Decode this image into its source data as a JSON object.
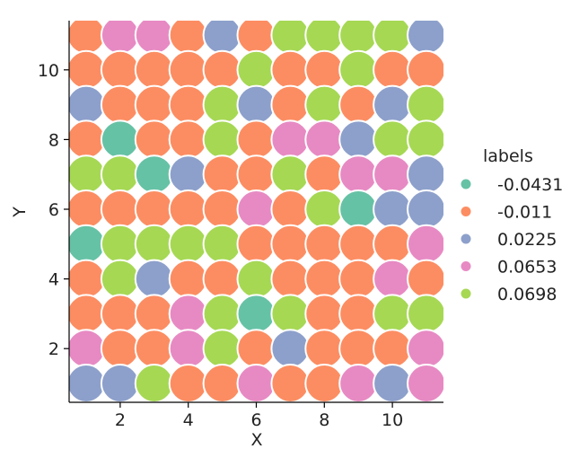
{
  "chart_data": {
    "type": "scatter",
    "xlabel": "X",
    "ylabel": "Y",
    "xlim": [
      0.5,
      11.5
    ],
    "ylim": [
      0.5,
      11.4
    ],
    "xticks": [
      2,
      4,
      6,
      8,
      10
    ],
    "yticks": [
      2,
      4,
      6,
      8,
      10
    ],
    "grid": false,
    "legend_title": "labels",
    "legend_position": "right",
    "series": [
      {
        "name": "-0.0431",
        "color": "#66c2a5"
      },
      {
        "name": "-0.011",
        "color": "#fc8d62"
      },
      {
        "name": "0.0225",
        "color": "#8da0cb"
      },
      {
        "name": "0.0653",
        "color": "#e78ac3"
      },
      {
        "name": "0.0698",
        "color": "#a6d854"
      }
    ],
    "grid_labels_rows_y11_to_y1": [
      [
        1,
        3,
        3,
        1,
        2,
        1,
        4,
        4,
        4,
        4,
        2
      ],
      [
        1,
        1,
        1,
        1,
        1,
        4,
        1,
        1,
        4,
        1,
        1
      ],
      [
        2,
        1,
        1,
        1,
        4,
        2,
        1,
        4,
        1,
        2,
        4
      ],
      [
        1,
        0,
        1,
        1,
        4,
        1,
        3,
        3,
        2,
        4,
        4
      ],
      [
        4,
        4,
        0,
        2,
        1,
        1,
        4,
        1,
        3,
        3,
        2
      ],
      [
        1,
        1,
        1,
        1,
        1,
        3,
        1,
        4,
        0,
        2,
        2
      ],
      [
        0,
        4,
        4,
        4,
        4,
        1,
        1,
        1,
        1,
        1,
        3
      ],
      [
        1,
        4,
        2,
        1,
        1,
        4,
        1,
        1,
        1,
        3,
        1
      ],
      [
        1,
        1,
        1,
        3,
        4,
        0,
        4,
        1,
        1,
        4,
        4
      ],
      [
        3,
        1,
        1,
        3,
        4,
        1,
        2,
        1,
        1,
        1,
        3
      ],
      [
        2,
        2,
        4,
        1,
        1,
        3,
        1,
        1,
        3,
        2,
        3
      ]
    ]
  }
}
